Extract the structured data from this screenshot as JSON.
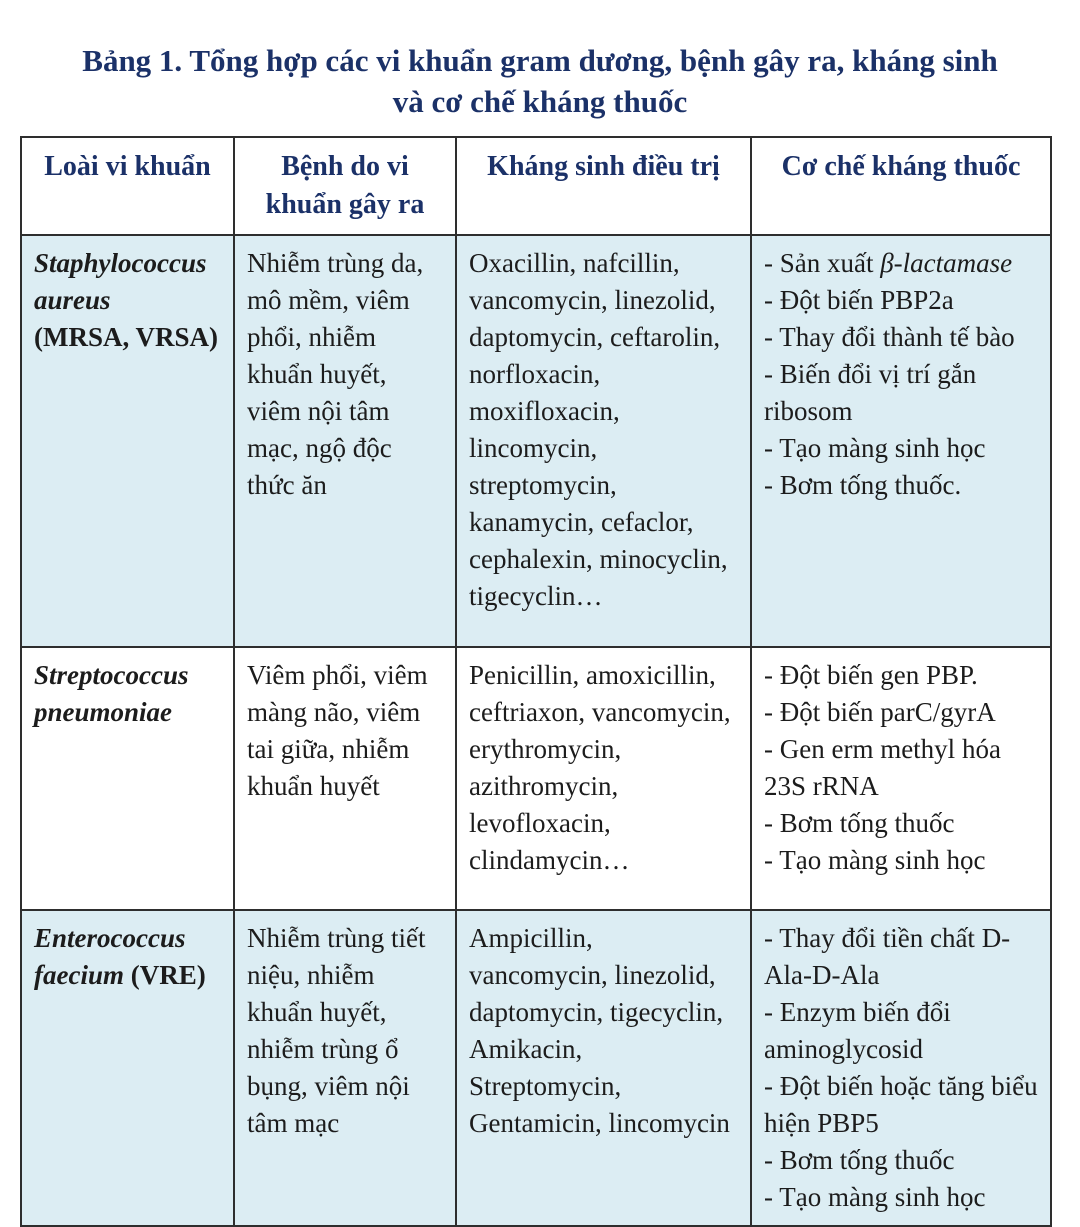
{
  "page": {
    "title": "Bảng 1. Tổng hợp các vi khuẩn gram dương, bệnh gây ra, kháng sinh và cơ chế kháng thuốc"
  },
  "table": {
    "headers": [
      {
        "label": "Loài vi khuẩn"
      },
      {
        "label": "Bệnh do vi khuẩn gây ra"
      },
      {
        "label": "Kháng sinh điều trị"
      },
      {
        "label": "Cơ chế kháng thuốc"
      }
    ],
    "rows": [
      {
        "species_italic": "Staphylococcus aureus",
        "species_plain": "(MRSA, VRSA)",
        "species_plain_newline": true,
        "diseases": "Nhiễm trùng da, mô mềm, viêm phổi, nhiễm khuẩn huyết, viêm nội tâm mạc, ngộ độc thức ăn",
        "antibiotics": "Oxacillin, nafcillin, vancomycin, linezolid, daptomycin, ceftarolin, norfloxacin, moxifloxacin, lincomycin, streptomycin, kanamycin, cefaclor, cephalexin, minocyclin, tigecyclin…",
        "mechanisms": [
          {
            "pre": "- Sản xuất ",
            "italic": "β-lactamase",
            "post": ""
          },
          {
            "pre": "- Đột biến PBP2a"
          },
          {
            "pre": "- Thay đổi thành tế bào"
          },
          {
            "pre": "- Biến đổi vị trí gắn ribosom"
          },
          {
            "pre": "- Tạo màng sinh học"
          },
          {
            "pre": "- Bơm tống thuốc."
          }
        ],
        "shaded": true
      },
      {
        "species_italic": "Streptococcus pneumoniae",
        "species_plain": "",
        "species_plain_newline": false,
        "diseases": "Viêm phổi, viêm màng não, viêm tai giữa, nhiễm khuẩn huyết",
        "antibiotics": "Penicillin, amoxicillin, ceftriaxon, vancomycin, erythromycin, azithromycin, levofloxacin, clindamycin…",
        "mechanisms": [
          {
            "pre": "- Đột biến gen PBP."
          },
          {
            "pre": "- Đột biến parC/gyrA"
          },
          {
            "pre": "- Gen erm methyl hóa 23S rRNA"
          },
          {
            "pre": "- Bơm tống thuốc"
          },
          {
            "pre": "- Tạo màng sinh học"
          }
        ],
        "shaded": false
      },
      {
        "species_italic": "Enterococcus faecium",
        "species_plain": "(VRE)",
        "species_plain_newline": false,
        "diseases": "Nhiễm trùng tiết niệu, nhiễm khuẩn huyết, nhiễm trùng ổ bụng, viêm nội tâm mạc",
        "antibiotics": "Ampicillin, vancomycin, linezolid, daptomycin, tigecyclin, Amikacin, Streptomycin, Gentamicin, lincomycin",
        "mechanisms": [
          {
            "pre": "- Thay đổi tiền chất D-Ala-D-Ala"
          },
          {
            "pre": "- Enzym biến đổi aminoglycosid"
          },
          {
            "pre": "- Đột biến hoặc tăng biểu hiện PBP5"
          },
          {
            "pre": "- Bơm tống thuốc"
          },
          {
            "pre": "- Tạo màng sinh học"
          }
        ],
        "shaded": true
      }
    ]
  },
  "colors": {
    "accent_navy": "#1b3168",
    "row_shade_blue": "#dcedf3",
    "border": "#2e2e2e",
    "body_text": "#1c1c1c",
    "background": "#ffffff"
  }
}
